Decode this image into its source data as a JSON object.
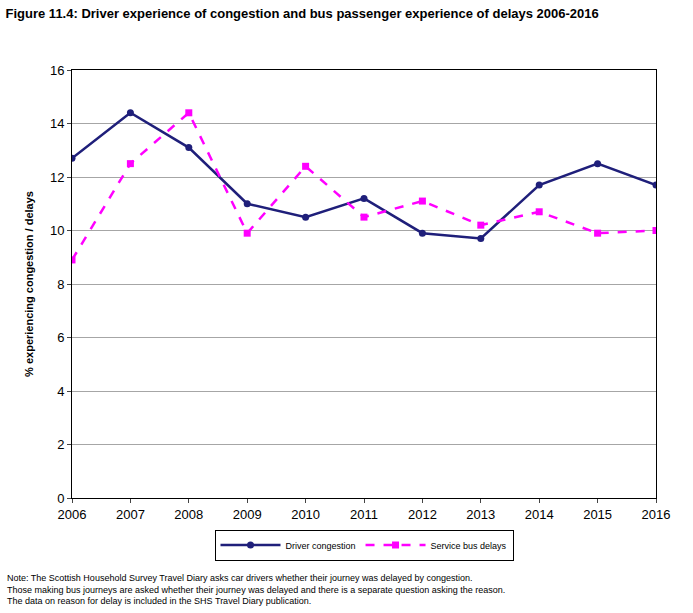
{
  "chart_data": {
    "type": "line",
    "title": "Figure 11.4: Driver experience of congestion and bus passenger experience of delays 2006-2016",
    "y_label": "% experiencing congestion / delays",
    "x": [
      2006,
      2007,
      2008,
      2009,
      2010,
      2011,
      2012,
      2013,
      2014,
      2015,
      2016
    ],
    "series": [
      {
        "name": "Driver congestion",
        "color": "#1f1f7a",
        "marker": "circle",
        "line_style": "solid",
        "values": [
          12.7,
          14.4,
          13.1,
          11.0,
          10.5,
          11.2,
          9.9,
          9.7,
          11.7,
          12.5,
          11.7
        ]
      },
      {
        "name": "Service bus delays",
        "color": "#ff00ff",
        "marker": "square",
        "line_style": "dash",
        "values": [
          8.9,
          12.5,
          14.4,
          9.9,
          12.4,
          10.5,
          11.1,
          10.2,
          10.7,
          9.9,
          10.0
        ]
      }
    ],
    "xlim": [
      2006,
      2016
    ],
    "xticks": [
      2006,
      2007,
      2008,
      2009,
      2010,
      2011,
      2012,
      2013,
      2014,
      2015,
      2016
    ],
    "ylim": [
      0,
      16
    ],
    "yticks": [
      0,
      2,
      4,
      6,
      8,
      10,
      12,
      14,
      16
    ],
    "grid": true,
    "legend": "bottom",
    "annotations": [
      "Note: The Scottish Household Survey Travel Diary asks car drivers whether their journey was delayed by congestion.",
      "Those making bus journeys are asked whether their journey was delayed and there is a separate question asking the reason.",
      "The data on reason for delay is included in the SHS Travel Diary publication."
    ]
  }
}
